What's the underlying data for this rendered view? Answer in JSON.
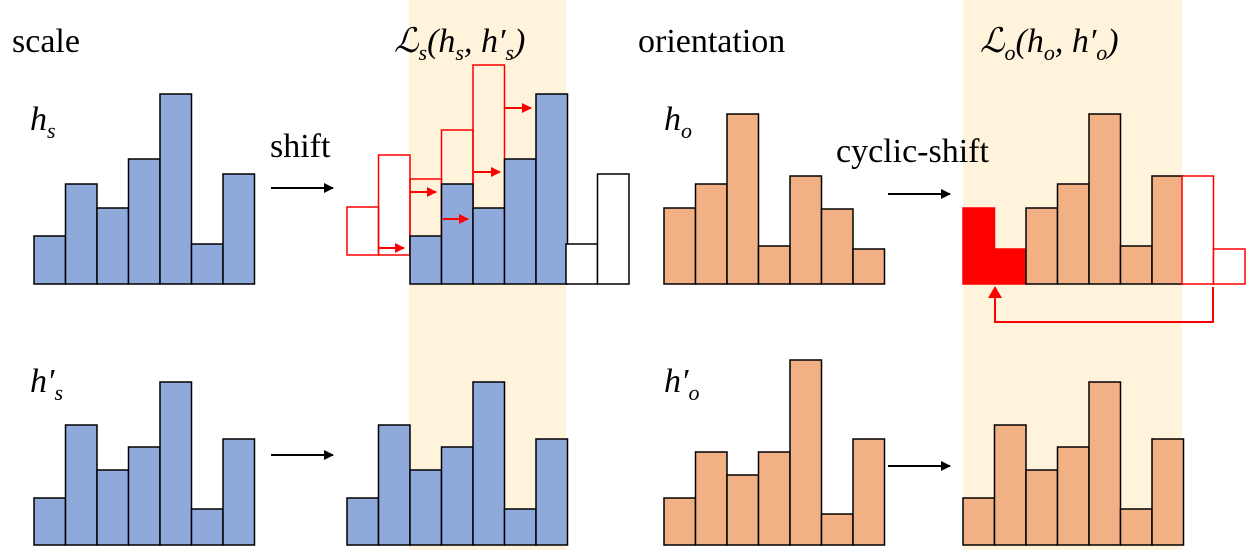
{
  "colors": {
    "scale_bar": "#8FA9DB",
    "orientation_bar": "#F2B185",
    "highlight_band": "#FFF3DC",
    "shift_red": "#FF0000",
    "outline": "#000000"
  },
  "labels": {
    "scale": "scale",
    "orientation": "orientation",
    "shift": "shift",
    "cyclic_shift": "cyclic-shift",
    "loss_s": {
      "main": "ℒ",
      "sub": "s",
      "args": "(h",
      "arg1sub": "s",
      "sep": ", h′",
      "arg2sub": "s",
      "close": ")"
    },
    "loss_o": {
      "main": "ℒ",
      "sub": "o",
      "args": "(h",
      "arg1sub": "o",
      "sep": ", h′",
      "arg2sub": "o",
      "close": ")"
    },
    "h_s": {
      "base": "h",
      "sub": "s"
    },
    "h_s_prime": {
      "base": "h′",
      "sub": "s"
    },
    "h_o": {
      "base": "h",
      "sub": "o"
    },
    "h_o_prime": {
      "base": "h′",
      "sub": "o"
    }
  },
  "chart_data": {
    "type": "bar",
    "histograms": {
      "h_s": [
        48,
        100,
        76,
        125,
        190,
        40,
        110
      ],
      "h_o": [
        76,
        100,
        170,
        38,
        108,
        75,
        35
      ],
      "h_prime": [
        47,
        120,
        75,
        98,
        163,
        36,
        106
      ]
    },
    "shifted_h_s_outline": [
      48,
      100,
      76,
      125,
      190
    ],
    "trailing_empty": [
      40,
      110
    ],
    "cyclic_wrapped_filled": [
      76,
      35
    ],
    "cyclic_trailing_empty": [
      108,
      35
    ]
  }
}
